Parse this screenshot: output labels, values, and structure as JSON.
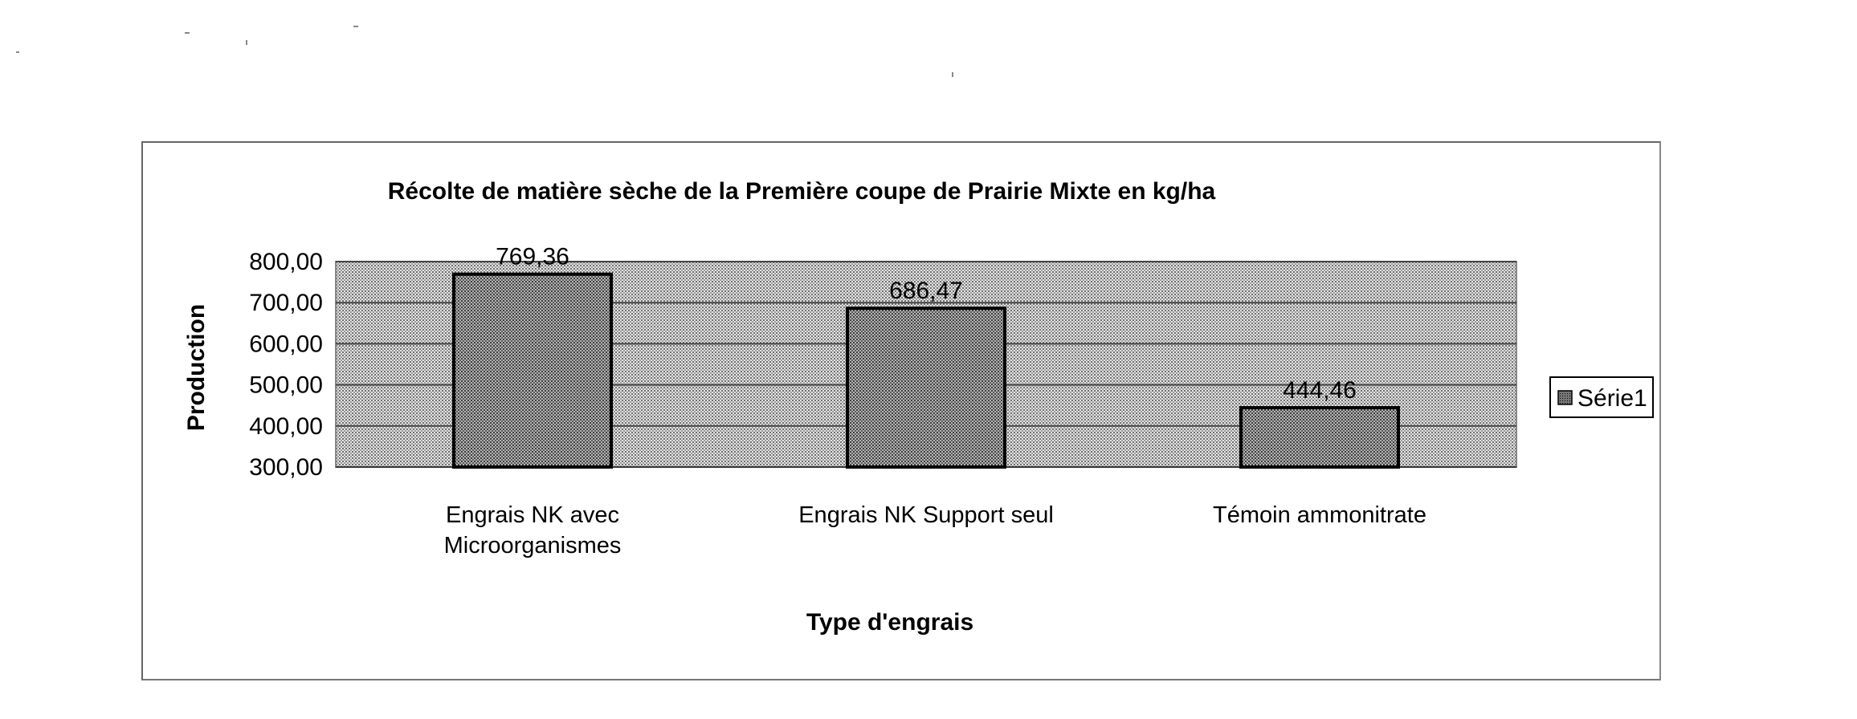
{
  "chart_data": {
    "type": "bar",
    "title": "Récolte de matière sèche de la Première coupe de Prairie Mixte en kg/ha",
    "xlabel": "Type d'engrais",
    "ylabel": "Production",
    "categories": [
      "Engrais NK avec Microorganismes",
      "Engrais NK Support seul",
      "Témoin ammonitrate"
    ],
    "category_lines": [
      [
        "Engrais NK avec",
        "Microorganismes"
      ],
      [
        "Engrais NK Support seul"
      ],
      [
        "Témoin ammonitrate"
      ]
    ],
    "series": [
      {
        "name": "Série1",
        "values": [
          769.36,
          686.47,
          444.46
        ]
      }
    ],
    "data_labels": [
      "769,36",
      "686,47",
      "444,46"
    ],
    "ylim": [
      300,
      800
    ],
    "yticks": [
      300,
      400,
      500,
      600,
      700,
      800
    ],
    "ytick_labels": [
      "300,00",
      "400,00",
      "500,00",
      "600,00",
      "700,00",
      "800,00"
    ],
    "grid": true,
    "legend_position": "right",
    "colors": {
      "plot_fill": "#c8c8c8",
      "bar_fill": "#9a9a9a",
      "bar_stroke": "#000000",
      "gridline": "#444444"
    }
  }
}
